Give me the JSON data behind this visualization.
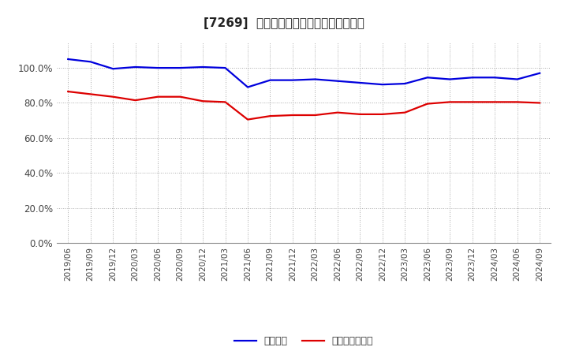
{
  "title": "[7269]  固定比率、固定長期適合率の推移",
  "blue_label": "固定比率",
  "red_label": "固定長期適合率",
  "blue_color": "#0000dd",
  "red_color": "#dd0000",
  "background_color": "#ffffff",
  "grid_color": "#aaaaaa",
  "ylim": [
    0,
    115
  ],
  "yticks": [
    0,
    20,
    40,
    60,
    80,
    100
  ],
  "x_labels": [
    "2019/06",
    "2019/09",
    "2019/12",
    "2020/03",
    "2020/06",
    "2020/09",
    "2020/12",
    "2021/03",
    "2021/06",
    "2021/09",
    "2021/12",
    "2022/03",
    "2022/06",
    "2022/09",
    "2022/12",
    "2023/03",
    "2023/06",
    "2023/09",
    "2023/12",
    "2024/03",
    "2024/06",
    "2024/09"
  ],
  "blue_values": [
    105.0,
    103.5,
    99.5,
    100.5,
    100.0,
    100.0,
    100.5,
    100.0,
    89.0,
    93.0,
    93.0,
    93.5,
    92.5,
    91.5,
    90.5,
    91.0,
    94.5,
    93.5,
    94.5,
    94.5,
    93.5,
    97.0
  ],
  "red_values": [
    86.5,
    85.0,
    83.5,
    81.5,
    83.5,
    83.5,
    81.0,
    80.5,
    70.5,
    72.5,
    73.0,
    73.0,
    74.5,
    73.5,
    73.5,
    74.5,
    79.5,
    80.5,
    80.5,
    80.5,
    80.5,
    80.0
  ]
}
